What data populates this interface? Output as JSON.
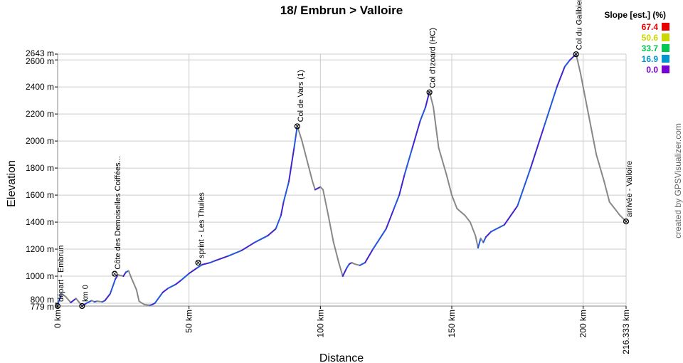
{
  "chart_data": {
    "type": "line",
    "title": "18/ Embrun > Valloire",
    "xlabel": "Distance",
    "ylabel": "Elevation",
    "x_unit": "km",
    "y_unit": "m",
    "xlim": [
      0,
      216.333
    ],
    "ylim": [
      779,
      2643
    ],
    "x_ticks": [
      {
        "value": 0,
        "label": "0 km"
      },
      {
        "value": 50,
        "label": "50 km"
      },
      {
        "value": 100,
        "label": "100 km"
      },
      {
        "value": 150,
        "label": "150 km"
      },
      {
        "value": 200,
        "label": "200 km"
      },
      {
        "value": 216.333,
        "label": "216.333 km"
      }
    ],
    "y_ticks": [
      {
        "value": 779,
        "label": "779 m"
      },
      {
        "value": 800,
        "label": "800 m"
      },
      {
        "value": 1000,
        "label": "1000 m"
      },
      {
        "value": 1200,
        "label": "1200 m"
      },
      {
        "value": 1400,
        "label": "1400 m"
      },
      {
        "value": 1600,
        "label": "1600 m"
      },
      {
        "value": 1800,
        "label": "1800 m"
      },
      {
        "value": 2000,
        "label": "2000 m"
      },
      {
        "value": 2200,
        "label": "2200 m"
      },
      {
        "value": 2400,
        "label": "2400 m"
      },
      {
        "value": 2600,
        "label": "2600 m"
      },
      {
        "value": 2643,
        "label": "2643 m"
      }
    ],
    "grid": true,
    "profile": {
      "x": [
        0,
        1.5,
        3,
        5,
        7,
        9.3,
        11,
        13,
        14,
        15,
        17,
        18,
        20,
        22,
        23,
        25,
        26,
        27,
        28,
        30,
        31,
        33,
        35,
        36,
        37,
        40,
        42,
        45,
        47,
        50,
        53,
        55,
        58,
        60,
        65,
        70,
        75,
        80,
        83,
        85,
        86,
        88,
        90,
        91.2,
        93,
        95,
        97,
        98,
        100,
        101,
        103,
        105,
        107,
        108.5,
        110,
        111,
        112,
        113,
        115,
        117,
        120,
        125,
        128,
        130,
        132,
        135,
        138,
        140,
        141.5,
        143,
        145,
        148,
        150,
        152,
        155,
        157,
        158,
        159,
        160,
        161,
        162,
        163,
        165,
        170,
        175,
        180,
        185,
        190,
        193,
        195,
        197.3,
        199,
        201,
        203,
        205,
        208,
        210,
        212,
        214,
        216.333
      ],
      "y": [
        790,
        870,
        850,
        805,
        835,
        780,
        800,
        820,
        810,
        815,
        810,
        820,
        870,
        980,
        1010,
        1000,
        1030,
        1040,
        990,
        900,
        815,
        790,
        785,
        790,
        800,
        880,
        910,
        940,
        970,
        1020,
        1060,
        1085,
        1100,
        1115,
        1150,
        1190,
        1250,
        1300,
        1350,
        1450,
        1550,
        1700,
        1950,
        2110,
        2000,
        1850,
        1700,
        1640,
        1660,
        1640,
        1450,
        1250,
        1100,
        1000,
        1060,
        1090,
        1100,
        1090,
        1080,
        1100,
        1200,
        1350,
        1500,
        1600,
        1750,
        1950,
        2150,
        2250,
        2365,
        2250,
        1950,
        1750,
        1600,
        1500,
        1450,
        1400,
        1350,
        1300,
        1210,
        1280,
        1250,
        1290,
        1330,
        1380,
        1520,
        1800,
        2100,
        2400,
        2550,
        2600,
        2643,
        2500,
        2300,
        2100,
        1900,
        1700,
        1550,
        1500,
        1450,
        1405
      ]
    },
    "waypoints": [
      {
        "x": 0,
        "y": 779,
        "label": "départ - Embrun"
      },
      {
        "x": 9.3,
        "y": 779,
        "label": "km 0"
      },
      {
        "x": 21.7,
        "y": 1018,
        "label": "Côte des Demoiselles Coiffées..."
      },
      {
        "x": 53.5,
        "y": 1100,
        "label": "sprint - Les Thuiles"
      },
      {
        "x": 91.2,
        "y": 2109,
        "label": "Col de Vars (1)"
      },
      {
        "x": 141.5,
        "y": 2360,
        "label": "Col d'Izoard (HC)"
      },
      {
        "x": 197.3,
        "y": 2642,
        "label": "Col du Galibier"
      },
      {
        "x": 216.333,
        "y": 1405,
        "label": "arrivée - Valloire"
      }
    ],
    "legend": {
      "title": "Slope [est.] (%)",
      "placement": "top-right",
      "entries": [
        {
          "label": "67.4",
          "color": "#e60000"
        },
        {
          "label": "50.6",
          "color": "#c8d800"
        },
        {
          "label": "33.7",
          "color": "#00c850"
        },
        {
          "label": "16.9",
          "color": "#0096d2"
        },
        {
          "label": "0.0",
          "color": "#7800d2"
        }
      ]
    },
    "line_colors": [
      "#888888",
      "#2255dd",
      "#4422cc",
      "#22aa66"
    ]
  },
  "credit": "created by GPSVisualizer.com"
}
